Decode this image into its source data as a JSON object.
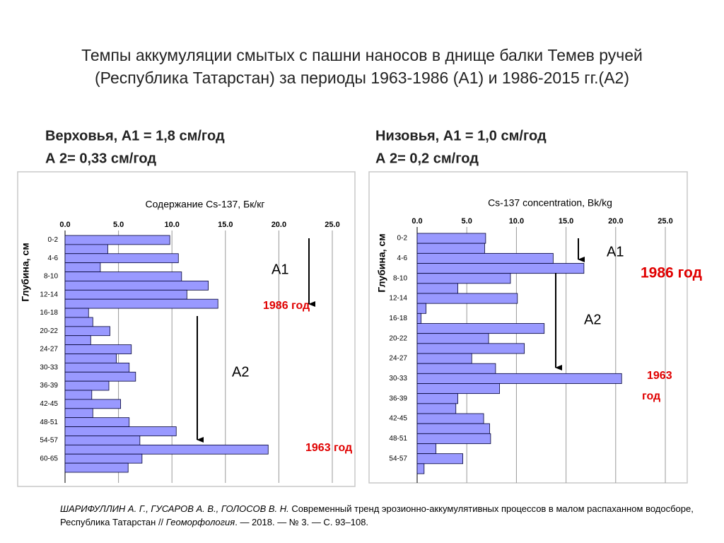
{
  "title": [
    "Темпы аккумуляции  смытых с пашни наносов в днище балки Темев ручей",
    "(Республика Татарстан) за периоды 1963-1986 (А1) и 1986-2015 гг.(А2)"
  ],
  "chart_data": [
    {
      "type": "bar",
      "horizontal": true,
      "heading": [
        "Верховья, А1 = 1,8 см/год",
        "А 2= 0,33 см/год"
      ],
      "title": "Содержание Cs-137, Бк/кг",
      "y_label": "Глубина, см",
      "categories": [
        "0-2",
        null,
        "4-6",
        null,
        "8-10",
        null,
        "12-14",
        null,
        "16-18",
        null,
        "20-22",
        null,
        "24-27",
        null,
        "30-33",
        null,
        "36-39",
        null,
        "42-45",
        null,
        "48-51",
        null,
        "54-57",
        null,
        "60-65",
        null
      ],
      "values": [
        9.8,
        4.0,
        10.6,
        3.3,
        10.9,
        13.4,
        11.4,
        14.3,
        2.2,
        2.6,
        4.2,
        2.4,
        6.2,
        4.8,
        6.0,
        6.6,
        4.1,
        2.5,
        5.2,
        2.6,
        6.0,
        10.4,
        7.0,
        19.0,
        7.2,
        5.9
      ],
      "color": "#9999ff",
      "xlim": [
        0,
        25
      ],
      "xticks": [
        {
          "value": 0,
          "label": "0.0"
        },
        {
          "value": 5,
          "label": "5.0"
        },
        {
          "value": 10,
          "label": "10.0"
        },
        {
          "value": 15,
          "label": "15.0"
        },
        {
          "value": 20,
          "label": "20.0"
        },
        {
          "value": 25,
          "label": "25.0"
        }
      ],
      "grid": true,
      "annotations": [
        "А1",
        "1986 год",
        "А2",
        "1963 год"
      ]
    },
    {
      "type": "bar",
      "horizontal": true,
      "heading": [
        "Низовья, А1 = 1,0 см/год",
        "А 2= 0,2 см/год"
      ],
      "title": "Cs-137 concentration, Bk/kg",
      "y_label": "Глубина, см",
      "categories": [
        "0-2",
        null,
        "4-6",
        null,
        "8-10",
        null,
        "12-14",
        null,
        "16-18",
        null,
        "20-22",
        null,
        "24-27",
        null,
        "30-33",
        null,
        "36-39",
        null,
        "42-45",
        null,
        "48-51",
        null,
        "54-57",
        null
      ],
      "values": [
        6.9,
        6.8,
        13.7,
        16.8,
        9.4,
        4.1,
        10.1,
        0.9,
        0.4,
        12.8,
        7.2,
        10.8,
        5.5,
        7.9,
        20.6,
        8.3,
        4.1,
        3.9,
        6.7,
        7.3,
        7.4,
        1.9,
        4.6,
        0.7
      ],
      "color": "#9999ff",
      "xlim": [
        0,
        25
      ],
      "xticks": [
        {
          "value": 0,
          "label": "0.0"
        },
        {
          "value": 5,
          "label": "5.0"
        },
        {
          "value": 10,
          "label": "10.0"
        },
        {
          "value": 15,
          "label": "15.0"
        },
        {
          "value": 20,
          "label": "20.0"
        },
        {
          "value": 25,
          "label": "25.0"
        }
      ],
      "grid": true,
      "annotations": [
        "А1",
        "1986 год",
        "А2",
        "1963",
        "год"
      ]
    }
  ],
  "citation": [
    {
      "text": "ШАРИФУЛЛИН А. Г., ГУСАРОВ А. В., ГОЛОСОВ В. Н.",
      "italic": true
    },
    {
      "text": " Современный тренд эрозионно-аккумулятивных процессов в малом распаханном водосборе, Республика Татарстан // ",
      "italic": false
    },
    {
      "text": "Геоморфология",
      "italic": true
    },
    {
      "text": ". — 2018. — № 3. — С. 93–108.",
      "italic": false
    }
  ]
}
